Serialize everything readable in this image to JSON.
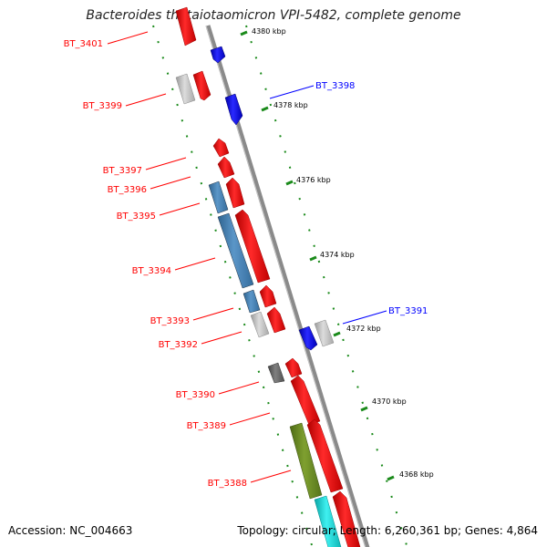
{
  "title": "Bacteroides thetaiotaomicron VPI-5482, complete genome",
  "accession_text": "Accession: NC_004663",
  "topology_text": "Topology: circular; Length: 6,260,361 bp; Genes: 4,864",
  "colors": {
    "forward": "#ff0000",
    "reverse": "#0000ff",
    "steel": "#4a86b8",
    "gray": "#c8c8c8",
    "dark": "#666666",
    "olive": "#6b8e23",
    "cyan": "#19d3d3",
    "axis": "#7a7a7a",
    "tick": "#1a8a1a"
  },
  "scale_labels": [
    "4380 kbp",
    "4378 kbp",
    "4376 kbp",
    "4374 kbp",
    "4372 kbp",
    "4370 kbp",
    "4368 kbp"
  ],
  "left_labels": [
    "BT_3401",
    "BT_3399",
    "BT_3397",
    "BT_3396",
    "BT_3395",
    "BT_3394",
    "BT_3393",
    "BT_3392",
    "BT_3390",
    "BT_3389",
    "BT_3388"
  ],
  "right_labels": [
    "BT_3398",
    "BT_3391"
  ]
}
